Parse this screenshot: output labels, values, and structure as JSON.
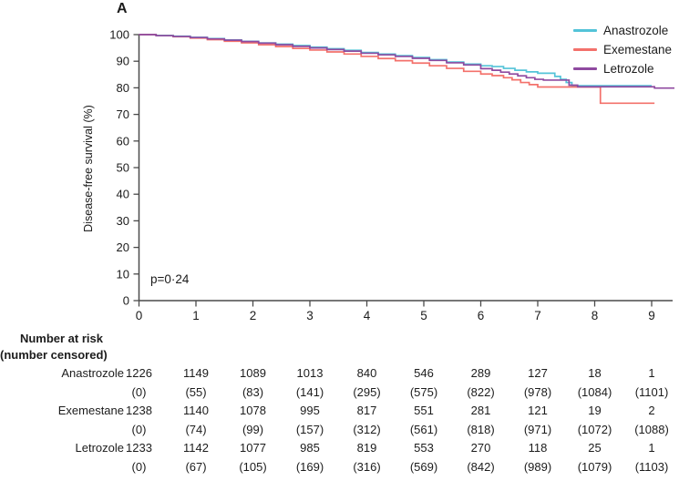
{
  "panel_label": "A",
  "chart_data": {
    "type": "line",
    "subtype": "kaplan-meier-step",
    "title": "",
    "xlabel": "",
    "ylabel": "Disease-free survival (%)",
    "xlim": [
      0,
      9.4
    ],
    "ylim": [
      0,
      100
    ],
    "xticks": [
      0,
      1,
      2,
      3,
      4,
      5,
      6,
      7,
      8,
      9
    ],
    "yticks": [
      0,
      10,
      20,
      30,
      40,
      50,
      60,
      70,
      80,
      90,
      100
    ],
    "grid": false,
    "legend_position": "top-right",
    "annotation": "p=0·24",
    "series": [
      {
        "name": "Anastrozole",
        "color": "#53c3d8",
        "t_end": 9.0,
        "points": [
          [
            0,
            100
          ],
          [
            0.3,
            99.7
          ],
          [
            0.6,
            99.4
          ],
          [
            0.9,
            99.0
          ],
          [
            1.2,
            98.5
          ],
          [
            1.5,
            98.0
          ],
          [
            1.8,
            97.5
          ],
          [
            2.1,
            96.9
          ],
          [
            2.4,
            96.4
          ],
          [
            2.7,
            95.9
          ],
          [
            3.0,
            95.3
          ],
          [
            3.3,
            94.7
          ],
          [
            3.6,
            94.1
          ],
          [
            3.9,
            93.3
          ],
          [
            4.2,
            92.7
          ],
          [
            4.5,
            92.1
          ],
          [
            4.8,
            91.4
          ],
          [
            5.1,
            90.6
          ],
          [
            5.4,
            89.7
          ],
          [
            5.7,
            88.9
          ],
          [
            6.0,
            88.3
          ],
          [
            6.2,
            88.0
          ],
          [
            6.4,
            87.3
          ],
          [
            6.6,
            86.6
          ],
          [
            6.8,
            86.0
          ],
          [
            7.0,
            85.5
          ],
          [
            7.3,
            84.3
          ],
          [
            7.4,
            83.2
          ],
          [
            7.5,
            82.0
          ],
          [
            7.6,
            80.8
          ]
        ]
      },
      {
        "name": "Exemestane",
        "color": "#f3716b",
        "t_end": 9.05,
        "points": [
          [
            0,
            100
          ],
          [
            0.3,
            99.6
          ],
          [
            0.6,
            99.2
          ],
          [
            0.9,
            98.7
          ],
          [
            1.2,
            98.1
          ],
          [
            1.5,
            97.5
          ],
          [
            1.8,
            96.9
          ],
          [
            2.1,
            96.2
          ],
          [
            2.4,
            95.5
          ],
          [
            2.7,
            94.8
          ],
          [
            3.0,
            94.2
          ],
          [
            3.3,
            93.5
          ],
          [
            3.6,
            92.7
          ],
          [
            3.9,
            91.8
          ],
          [
            4.2,
            91.0
          ],
          [
            4.5,
            90.2
          ],
          [
            4.8,
            89.3
          ],
          [
            5.1,
            88.3
          ],
          [
            5.4,
            87.3
          ],
          [
            5.7,
            86.2
          ],
          [
            6.0,
            85.2
          ],
          [
            6.2,
            84.6
          ],
          [
            6.4,
            83.8
          ],
          [
            6.55,
            83.0
          ],
          [
            6.7,
            82.0
          ],
          [
            6.85,
            81.2
          ],
          [
            7.0,
            80.3
          ],
          [
            8.1,
            74.2
          ]
        ]
      },
      {
        "name": "Letrozole",
        "color": "#8f4aa0",
        "t_end": 9.4,
        "points": [
          [
            0,
            100
          ],
          [
            0.3,
            99.6
          ],
          [
            0.6,
            99.3
          ],
          [
            0.9,
            98.9
          ],
          [
            1.2,
            98.4
          ],
          [
            1.5,
            97.9
          ],
          [
            1.8,
            97.4
          ],
          [
            2.1,
            96.8
          ],
          [
            2.4,
            96.2
          ],
          [
            2.7,
            95.6
          ],
          [
            3.0,
            95.0
          ],
          [
            3.3,
            94.4
          ],
          [
            3.6,
            93.8
          ],
          [
            3.9,
            93.0
          ],
          [
            4.2,
            92.4
          ],
          [
            4.5,
            91.8
          ],
          [
            4.8,
            91.1
          ],
          [
            5.1,
            90.3
          ],
          [
            5.4,
            89.4
          ],
          [
            5.7,
            88.6
          ],
          [
            6.0,
            87.2
          ],
          [
            6.2,
            86.6
          ],
          [
            6.35,
            85.9
          ],
          [
            6.5,
            85.2
          ],
          [
            6.65,
            84.5
          ],
          [
            6.8,
            83.8
          ],
          [
            6.95,
            83.2
          ],
          [
            7.1,
            82.9
          ],
          [
            7.55,
            81.0
          ],
          [
            7.7,
            80.4
          ],
          [
            9.05,
            79.9
          ]
        ]
      }
    ]
  },
  "risk_table": {
    "header_line1": "Number at risk",
    "header_line2": "(number censored)",
    "rows": [
      {
        "label": "Anastrozole",
        "at_risk": [
          "1226",
          "1149",
          "1089",
          "1013",
          "840",
          "546",
          "289",
          "127",
          "18",
          "1"
        ],
        "censored": [
          "(0)",
          "(55)",
          "(83)",
          "(141)",
          "(295)",
          "(575)",
          "(822)",
          "(978)",
          "(1084)",
          "(1101)"
        ]
      },
      {
        "label": "Exemestane",
        "at_risk": [
          "1238",
          "1140",
          "1078",
          "995",
          "817",
          "551",
          "281",
          "121",
          "19",
          "2"
        ],
        "censored": [
          "(0)",
          "(74)",
          "(99)",
          "(157)",
          "(312)",
          "(561)",
          "(818)",
          "(971)",
          "(1072)",
          "(1088)"
        ]
      },
      {
        "label": "Letrozole",
        "at_risk": [
          "1233",
          "1142",
          "1077",
          "985",
          "819",
          "553",
          "270",
          "118",
          "25",
          "1"
        ],
        "censored": [
          "(0)",
          "(67)",
          "(105)",
          "(169)",
          "(316)",
          "(569)",
          "(842)",
          "(989)",
          "(1079)",
          "(1103)"
        ]
      }
    ]
  }
}
